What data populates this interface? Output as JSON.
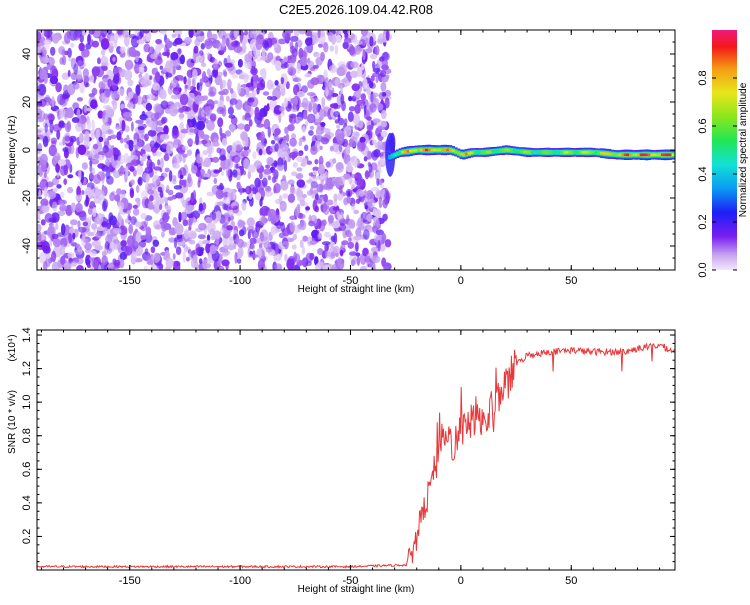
{
  "figure": {
    "title": "C2E5.2026.109.04.42.R08"
  },
  "chart_data": [
    {
      "type": "heatmap",
      "title": "C2E5.2026.109.04.42.R08",
      "xlabel": "Height of straight line (km)",
      "ylabel": "Frequency (Hz)",
      "xlim": [
        -192,
        97
      ],
      "ylim": [
        -50,
        50
      ],
      "x_ticks": [
        -150,
        -100,
        -50,
        0,
        50
      ],
      "x_tick_labels": [
        "-150",
        "-100",
        "-50",
        "0",
        "50"
      ],
      "y_ticks": [
        -40,
        -20,
        0,
        20,
        40
      ],
      "y_tick_labels": [
        "-40",
        "-20",
        "0",
        "20",
        "40"
      ],
      "noise_region_x": [
        -192,
        -33
      ],
      "signal_track": {
        "x": [
          -33,
          -28,
          -20,
          -10,
          -5,
          0,
          5,
          10,
          20,
          30,
          40,
          50,
          60,
          70,
          80,
          90,
          97
        ],
        "frequency_hz": [
          -3,
          -1,
          0,
          0,
          0,
          -2,
          -1,
          -1,
          0,
          -1,
          -1,
          -1,
          -1,
          -2,
          -2,
          -2,
          -2
        ],
        "amplitude": [
          0.35,
          0.7,
          0.85,
          0.9,
          0.75,
          0.8,
          0.7,
          0.6,
          0.65,
          0.6,
          0.6,
          0.65,
          0.7,
          0.8,
          0.9,
          0.95,
          0.9
        ]
      },
      "colorbar": {
        "label": "Normalized spectral amplitude",
        "range": [
          0,
          1
        ],
        "ticks": [
          0.0,
          0.2,
          0.4,
          0.6,
          0.8
        ],
        "tick_labels": [
          "0.0",
          "0.2",
          "0.4",
          "0.6",
          "0.8"
        ]
      }
    },
    {
      "type": "line",
      "xlabel": "Height of straight line (km)",
      "ylabel": "SNR (10 * v/v)",
      "scale_label": "(x10⁴)",
      "xlim": [
        -192,
        97
      ],
      "ylim": [
        0,
        1.43
      ],
      "x_ticks": [
        -150,
        -100,
        -50,
        0,
        50
      ],
      "x_tick_labels": [
        "-150",
        "-100",
        "-50",
        "0",
        "50"
      ],
      "y_ticks": [
        0.2,
        0.4,
        0.6,
        0.8,
        1.0,
        1.2,
        1.4
      ],
      "y_tick_labels": [
        "0.2",
        "0.4",
        "0.6",
        "0.8",
        "1.0",
        "1.2",
        "1.4"
      ],
      "color": "#e8383a",
      "series": [
        {
          "name": "SNR",
          "x": [
            -192,
            -100,
            -50,
            -25,
            -22,
            -20,
            -18,
            -15,
            -12,
            -10,
            -8,
            -5,
            -3,
            0,
            3,
            5,
            8,
            10,
            12,
            15,
            18,
            20,
            25,
            30,
            40,
            50,
            60,
            70,
            75,
            80,
            85,
            90,
            97
          ],
          "values": [
            0.02,
            0.02,
            0.02,
            0.03,
            0.1,
            0.25,
            0.3,
            0.45,
            0.6,
            0.65,
            0.75,
            0.8,
            0.7,
            0.85,
            0.82,
            0.9,
            0.95,
            0.85,
            0.9,
            0.95,
            1.05,
            1.1,
            1.22,
            1.28,
            1.3,
            1.31,
            1.3,
            1.3,
            1.3,
            1.32,
            1.33,
            1.34,
            1.3
          ]
        }
      ]
    }
  ]
}
